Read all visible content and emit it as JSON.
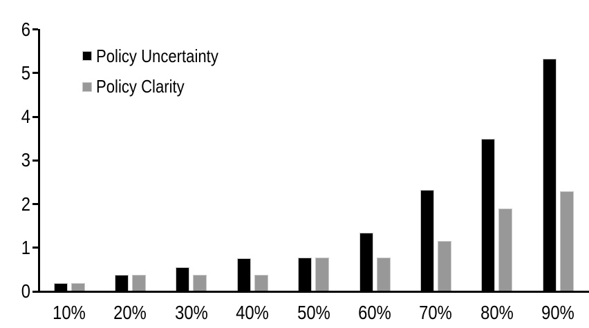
{
  "chart_data": {
    "type": "bar",
    "title": "",
    "xlabel": "",
    "ylabel": "",
    "categories": [
      "10%",
      "20%",
      "30%",
      "40%",
      "50%",
      "60%",
      "70%",
      "80%",
      "90%"
    ],
    "series": [
      {
        "name": "Policy Uncertainty",
        "color": "#000000",
        "values": [
          0.19,
          0.38,
          0.56,
          0.76,
          0.78,
          1.34,
          2.32,
          3.5,
          5.33
        ]
      },
      {
        "name": "Policy Clarity",
        "color": "#989898",
        "values": [
          0.19,
          0.38,
          0.38,
          0.38,
          0.77,
          0.77,
          1.15,
          1.9,
          2.3
        ]
      }
    ],
    "ylim": [
      0,
      6
    ],
    "yticks": [
      0,
      1,
      2,
      3,
      4,
      5,
      6
    ],
    "grid": false,
    "legend_position": "upper-left-inside",
    "axis_color": "#000000",
    "bar_border_color": "#c8c8c8",
    "background": "#ffffff"
  }
}
